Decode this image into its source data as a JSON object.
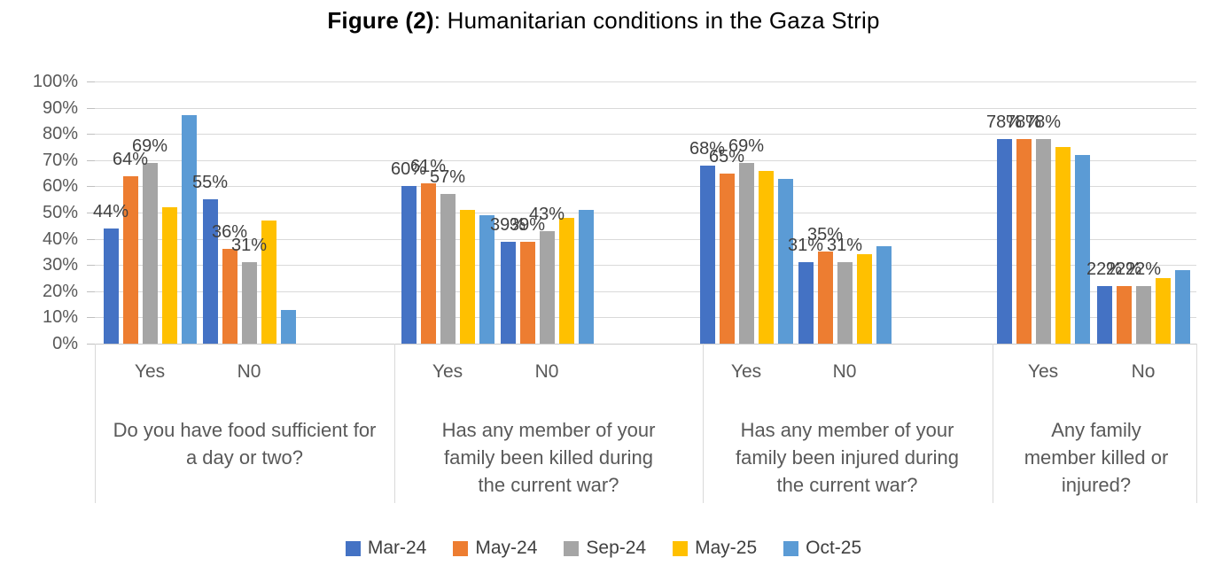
{
  "title": {
    "prefix": "Figure (2)",
    "rest": ": Humanitarian conditions in the Gaza Strip"
  },
  "chart_data": {
    "type": "bar",
    "title": "Figure (2): Humanitarian conditions in the Gaza Strip",
    "xlabel": "",
    "ylabel": "",
    "ylim": [
      0,
      100
    ],
    "y_tick_step": 10,
    "y_tick_labels": [
      "100%",
      "90%",
      "80%",
      "70%",
      "60%",
      "50%",
      "40%",
      "30%",
      "20%",
      "10%",
      "0%"
    ],
    "grid": true,
    "legend_position": "bottom",
    "value_format": "percent",
    "series": [
      {
        "name": "Mar-24",
        "color": "#4472C4"
      },
      {
        "name": "May-24",
        "color": "#ED7D31"
      },
      {
        "name": "Sep-24",
        "color": "#A5A5A5"
      },
      {
        "name": "May-25",
        "color": "#FFC000"
      },
      {
        "name": "Oct-25",
        "color": "#5B9BD5"
      }
    ],
    "data_labels_shown_for_series": [
      "Mar-24",
      "May-24",
      "Sep-24"
    ],
    "groups": [
      {
        "question": "Do you have food sufficient for a day or two?",
        "categories": [
          {
            "label": "Yes",
            "values": [
              44,
              64,
              69,
              52,
              87
            ]
          },
          {
            "label": "N0",
            "values": [
              55,
              36,
              31,
              47,
              13
            ]
          }
        ]
      },
      {
        "question": "Has any member of your family been killed during the current war?",
        "categories": [
          {
            "label": "Yes",
            "values": [
              60,
              61,
              57,
              51,
              49
            ]
          },
          {
            "label": "N0",
            "values": [
              39,
              39,
              43,
              48,
              51
            ]
          }
        ]
      },
      {
        "question": "Has any member of your family been injured during the current war?",
        "categories": [
          {
            "label": "Yes",
            "values": [
              68,
              65,
              69,
              66,
              63
            ]
          },
          {
            "label": "N0",
            "values": [
              31,
              35,
              31,
              34,
              37
            ]
          }
        ]
      },
      {
        "question": "Any family member killed or injured?",
        "categories": [
          {
            "label": "Yes",
            "values": [
              78,
              78,
              78,
              75,
              72
            ]
          },
          {
            "label": "No",
            "values": [
              22,
              22,
              22,
              25,
              28
            ]
          }
        ]
      }
    ]
  }
}
